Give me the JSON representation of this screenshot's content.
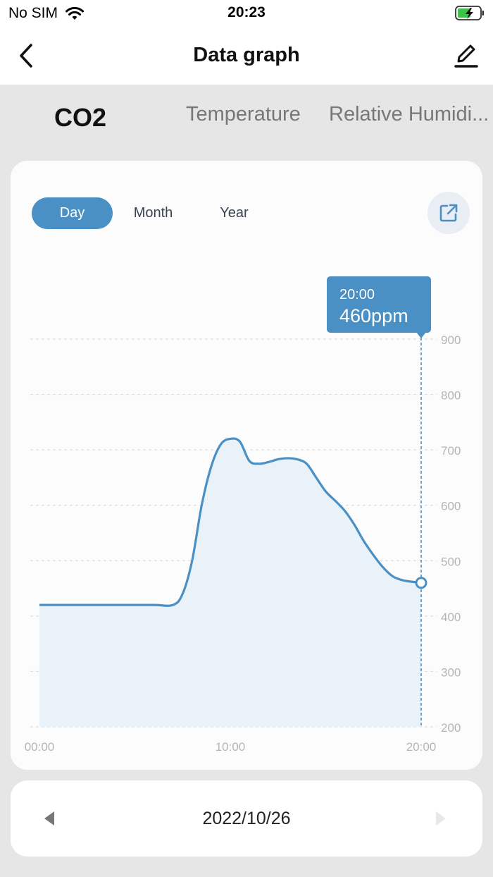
{
  "status_bar": {
    "carrier": "No SIM",
    "time": "20:23",
    "wifi_icon": "wifi-icon",
    "battery_icon": "battery-charging-icon"
  },
  "nav": {
    "title": "Data graph",
    "back_icon": "chevron-left-icon",
    "edit_icon": "pencil-icon"
  },
  "tabs": [
    {
      "label": "CO2",
      "active": true
    },
    {
      "label": "Temperature",
      "active": false
    },
    {
      "label": "Relative Humidi...",
      "active": false
    }
  ],
  "period": {
    "options": [
      "Day",
      "Month",
      "Year"
    ],
    "selected": "Day",
    "share_icon": "external-link-icon"
  },
  "tooltip": {
    "time": "20:00",
    "value": "460ppm"
  },
  "colors": {
    "accent": "#4a90c4",
    "area_fill": "#eaf2f9",
    "grid": "#dddddd"
  },
  "chart_data": {
    "type": "area",
    "title": "",
    "xlabel": "",
    "ylabel": "",
    "unit": "ppm",
    "x_ticks": [
      "00:00",
      "10:00",
      "20:00"
    ],
    "y_ticks": [
      200,
      300,
      400,
      500,
      600,
      700,
      800,
      900
    ],
    "ylim": [
      200,
      900
    ],
    "xlim_hours": [
      0,
      20
    ],
    "y_axis_position": "right",
    "grid": true,
    "series": [
      {
        "x": [
          0,
          2,
          4,
          6,
          7,
          7.5,
          8,
          8.5,
          9,
          9.5,
          10,
          10.5,
          11,
          11.5,
          12,
          12.5,
          13,
          13.5,
          14,
          14.5,
          15,
          15.5,
          16,
          16.5,
          17,
          17.5,
          18,
          18.5,
          19,
          19.5,
          20
        ],
        "y": [
          420,
          420,
          420,
          420,
          420,
          440,
          500,
          600,
          670,
          710,
          720,
          715,
          680,
          675,
          678,
          683,
          685,
          683,
          675,
          650,
          625,
          608,
          590,
          565,
          535,
          510,
          488,
          472,
          465,
          462,
          460
        ]
      }
    ],
    "highlight": {
      "x": 20,
      "y": 460
    }
  },
  "date_nav": {
    "date": "2022/10/26",
    "prev_icon": "triangle-left-icon",
    "next_icon": "triangle-right-icon"
  }
}
